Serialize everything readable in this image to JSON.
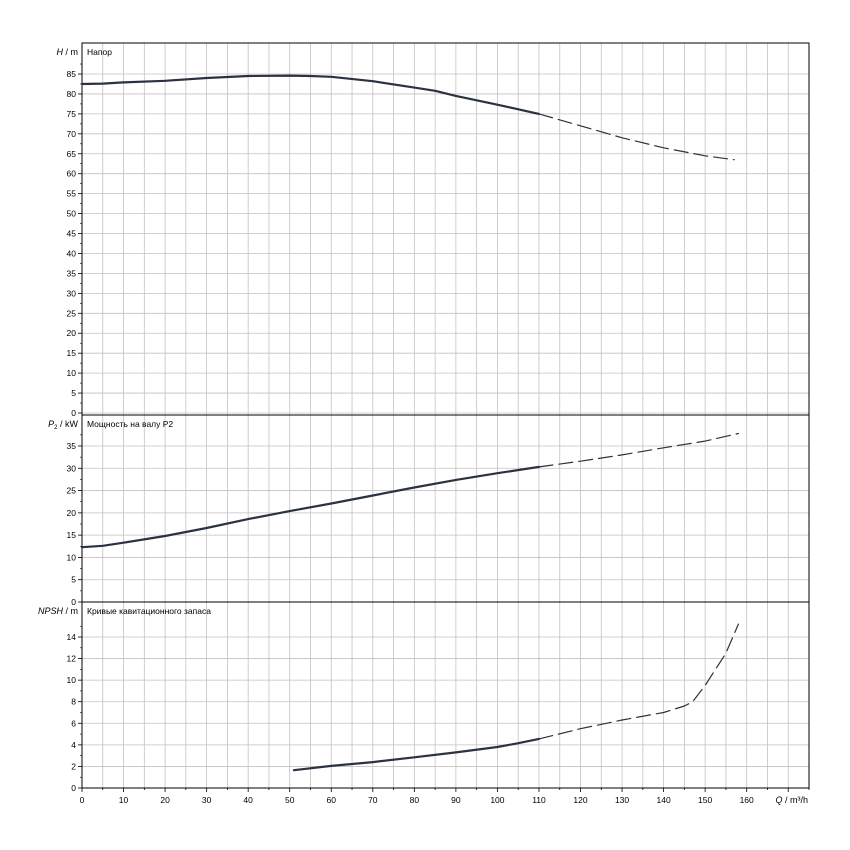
{
  "chart_data": [
    {
      "type": "line",
      "id": "head",
      "title": "Напор",
      "ylabel_var": "H",
      "ylabel_unit": " / m",
      "xlim": [
        0,
        175
      ],
      "ylim": [
        0,
        90
      ],
      "yticks": [
        0,
        5,
        10,
        15,
        20,
        25,
        30,
        35,
        40,
        45,
        50,
        55,
        60,
        65,
        70,
        75,
        80,
        85
      ],
      "grid": true,
      "series": [
        {
          "style": "solid",
          "x": [
            0,
            5,
            10,
            20,
            30,
            40,
            50,
            55,
            60,
            70,
            80,
            85,
            90,
            100,
            110
          ],
          "y": [
            82.5,
            82.6,
            82.9,
            83.3,
            84.0,
            84.5,
            84.6,
            84.5,
            84.3,
            83.2,
            81.6,
            80.8,
            79.5,
            77.3,
            75.0
          ]
        },
        {
          "style": "dashed",
          "x": [
            110,
            120,
            130,
            140,
            150,
            157
          ],
          "y": [
            75.0,
            72.0,
            69.0,
            66.5,
            64.5,
            63.5
          ]
        }
      ]
    },
    {
      "type": "line",
      "id": "power",
      "title": "Мощность на валу P2",
      "ylabel_var": "P",
      "ylabel_sub": "2",
      "ylabel_unit": " / kW",
      "xlim": [
        0,
        175
      ],
      "ylim": [
        0,
        40
      ],
      "yticks": [
        0,
        5,
        10,
        15,
        20,
        25,
        30,
        35
      ],
      "grid": true,
      "series": [
        {
          "style": "solid",
          "x": [
            0,
            5,
            10,
            20,
            30,
            40,
            50,
            60,
            70,
            80,
            90,
            100,
            110
          ],
          "y": [
            12.3,
            12.6,
            13.3,
            14.8,
            16.6,
            18.6,
            20.4,
            22.1,
            23.9,
            25.7,
            27.4,
            28.9,
            30.3
          ]
        },
        {
          "style": "dashed",
          "x": [
            110,
            120,
            130,
            140,
            150,
            158
          ],
          "y": [
            30.3,
            31.6,
            33.0,
            34.6,
            36.1,
            37.8
          ]
        }
      ]
    },
    {
      "type": "line",
      "id": "npsh",
      "title": "Кривые кавитационного запаса",
      "ylabel_var": "NPSH",
      "ylabel_unit": " / m",
      "xlabel_var": "Q",
      "xlabel_unit": " / m³/h",
      "xlim": [
        0,
        175
      ],
      "ylim": [
        0,
        16
      ],
      "yticks": [
        0,
        2,
        4,
        6,
        8,
        10,
        12,
        14
      ],
      "xticks": [
        0,
        10,
        20,
        30,
        40,
        50,
        60,
        70,
        80,
        90,
        100,
        110,
        120,
        130,
        140,
        150,
        160
      ],
      "grid": true,
      "series": [
        {
          "style": "solid",
          "x": [
            51,
            60,
            70,
            80,
            90,
            100,
            105,
            110
          ],
          "y": [
            1.65,
            2.05,
            2.4,
            2.85,
            3.3,
            3.8,
            4.15,
            4.55
          ]
        },
        {
          "style": "dashed",
          "x": [
            110,
            120,
            130,
            140,
            145,
            147,
            150,
            155,
            158
          ],
          "y": [
            4.55,
            5.5,
            6.3,
            7.0,
            7.6,
            8.0,
            9.5,
            12.5,
            15.2
          ]
        }
      ]
    }
  ]
}
